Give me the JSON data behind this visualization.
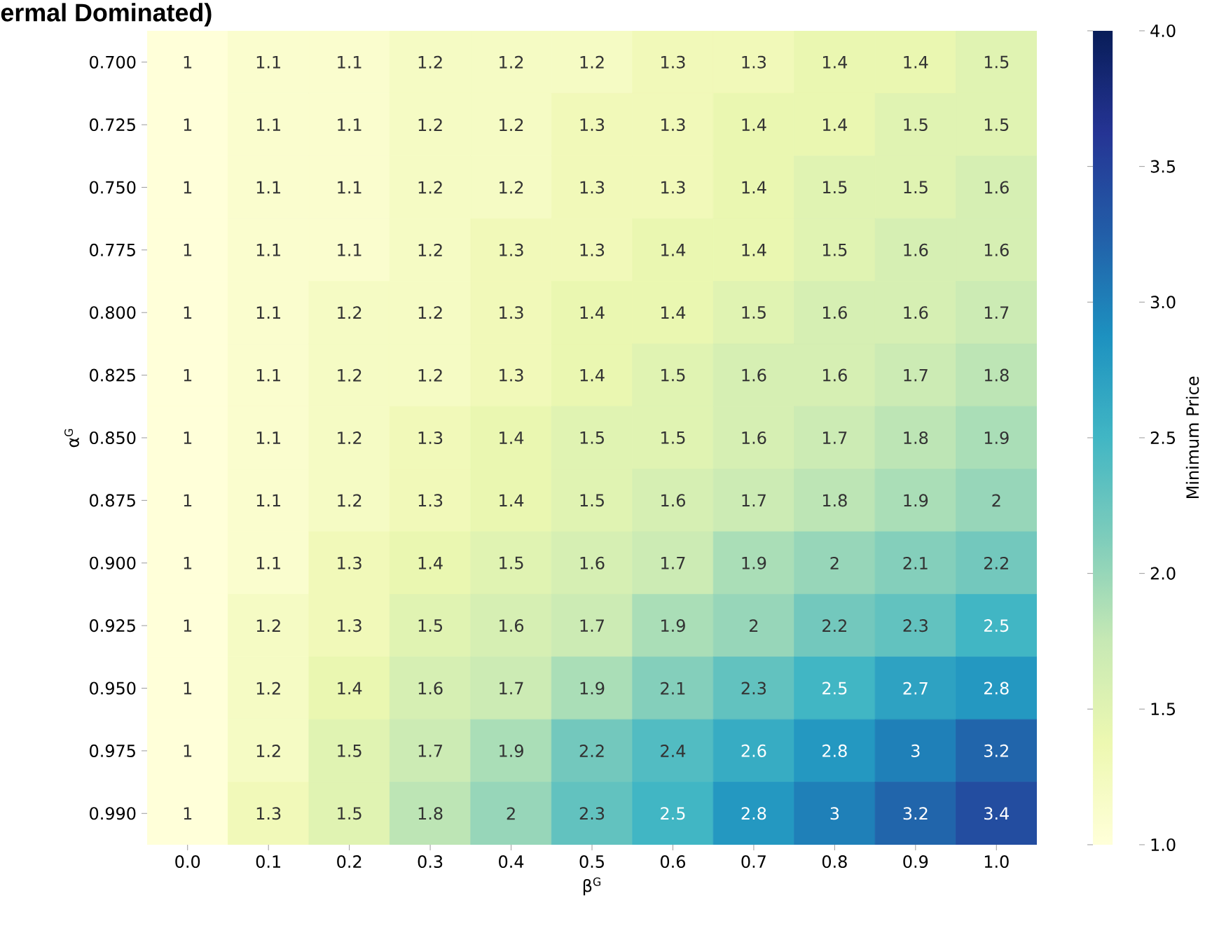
{
  "chart_data": {
    "type": "heatmap",
    "title": "ermal Dominated)",
    "xlabel": "β$^{G}$",
    "ylabel": "α$^{G}$",
    "clabel": "Minimum Price",
    "categories": [
      "0.0",
      "0.1",
      "0.2",
      "0.3",
      "0.4",
      "0.5",
      "0.6",
      "0.7",
      "0.8",
      "0.9",
      "1.0"
    ],
    "y_categories": [
      "0.700",
      "0.725",
      "0.750",
      "0.775",
      "0.800",
      "0.825",
      "0.850",
      "0.875",
      "0.900",
      "0.925",
      "0.950",
      "0.975",
      "0.990"
    ],
    "cells": [
      [
        1,
        1.1,
        1.1,
        1.2,
        1.2,
        1.2,
        1.3,
        1.3,
        1.4,
        1.4,
        1.5
      ],
      [
        1,
        1.1,
        1.1,
        1.2,
        1.2,
        1.3,
        1.3,
        1.4,
        1.4,
        1.5,
        1.5
      ],
      [
        1,
        1.1,
        1.1,
        1.2,
        1.2,
        1.3,
        1.3,
        1.4,
        1.5,
        1.5,
        1.6
      ],
      [
        1,
        1.1,
        1.1,
        1.2,
        1.3,
        1.3,
        1.4,
        1.4,
        1.5,
        1.6,
        1.6
      ],
      [
        1,
        1.1,
        1.2,
        1.2,
        1.3,
        1.4,
        1.4,
        1.5,
        1.6,
        1.6,
        1.7
      ],
      [
        1,
        1.1,
        1.2,
        1.2,
        1.3,
        1.4,
        1.5,
        1.6,
        1.6,
        1.7,
        1.8
      ],
      [
        1,
        1.1,
        1.2,
        1.3,
        1.4,
        1.5,
        1.5,
        1.6,
        1.7,
        1.8,
        1.9
      ],
      [
        1,
        1.1,
        1.2,
        1.3,
        1.4,
        1.5,
        1.6,
        1.7,
        1.8,
        1.9,
        2
      ],
      [
        1,
        1.1,
        1.3,
        1.4,
        1.5,
        1.6,
        1.7,
        1.9,
        2,
        2.1,
        2.2
      ],
      [
        1,
        1.2,
        1.3,
        1.5,
        1.6,
        1.7,
        1.9,
        2,
        2.2,
        2.3,
        2.5
      ],
      [
        1,
        1.2,
        1.4,
        1.6,
        1.7,
        1.9,
        2.1,
        2.3,
        2.5,
        2.7,
        2.8
      ],
      [
        1,
        1.2,
        1.5,
        1.7,
        1.9,
        2.2,
        2.4,
        2.6,
        2.8,
        3,
        3.2
      ],
      [
        1,
        1.3,
        1.5,
        1.8,
        2,
        2.3,
        2.5,
        2.8,
        3,
        3.2,
        3.4
      ]
    ],
    "clim": [
      1,
      4
    ],
    "cticks": [
      {
        "value": 1,
        "label": "1.0"
      },
      {
        "value": 1.5,
        "label": "1.5"
      },
      {
        "value": 2,
        "label": "2.0"
      },
      {
        "value": 2.5,
        "label": "2.5"
      },
      {
        "value": 3,
        "label": "3.0"
      },
      {
        "value": 3.5,
        "label": "3.5"
      },
      {
        "value": 4,
        "label": "4.0"
      }
    ],
    "data_labels": true
  }
}
